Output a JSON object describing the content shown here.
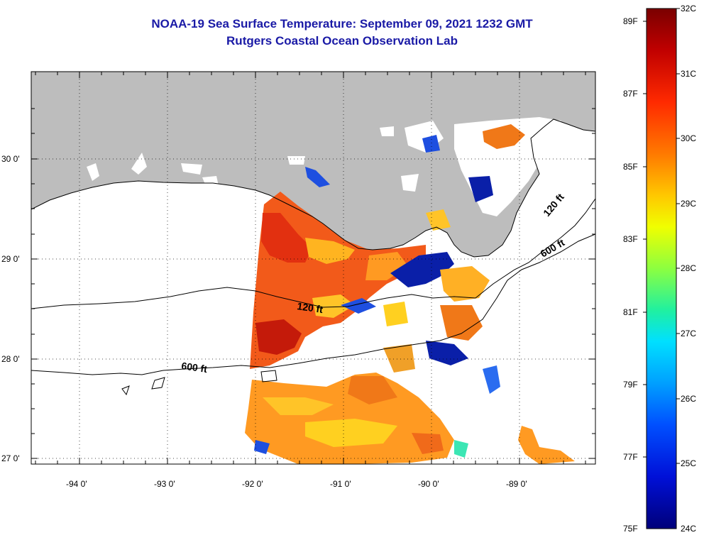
{
  "title": {
    "line1": "NOAA-19 Sea Surface Temperature:  September 09, 2021 1232 GMT",
    "line2": "Rutgers Coastal Ocean Observation Lab"
  },
  "map": {
    "lat_labels": [
      "30 0'",
      "29 0'",
      "28 0'",
      "27 0'"
    ],
    "lon_labels": [
      "-94 0'",
      "-93 0'",
      "-92 0'",
      "-91 0'",
      "-90 0'",
      "-89 0'"
    ],
    "contour_labels": [
      "120 ft",
      "600 ft",
      "120 ft",
      "600 ft"
    ],
    "land_color": "#bdbdbd",
    "no_data_color": "#ffffff"
  },
  "colorbar": {
    "fahrenheit_labels": [
      "89F",
      "87F",
      "85F",
      "83F",
      "81F",
      "79F",
      "77F",
      "75F"
    ],
    "celsius_labels": [
      "32C",
      "31C",
      "30C",
      "29C",
      "28C",
      "27C",
      "26C",
      "25C",
      "24C"
    ],
    "colors": [
      "#7a0000",
      "#cc0000",
      "#ff3300",
      "#ff8800",
      "#ffcc00",
      "#e6ff00",
      "#7fff3c",
      "#00e6b0",
      "#00ccff",
      "#0088ff",
      "#0033ff",
      "#0000c8",
      "#00007a"
    ]
  }
}
